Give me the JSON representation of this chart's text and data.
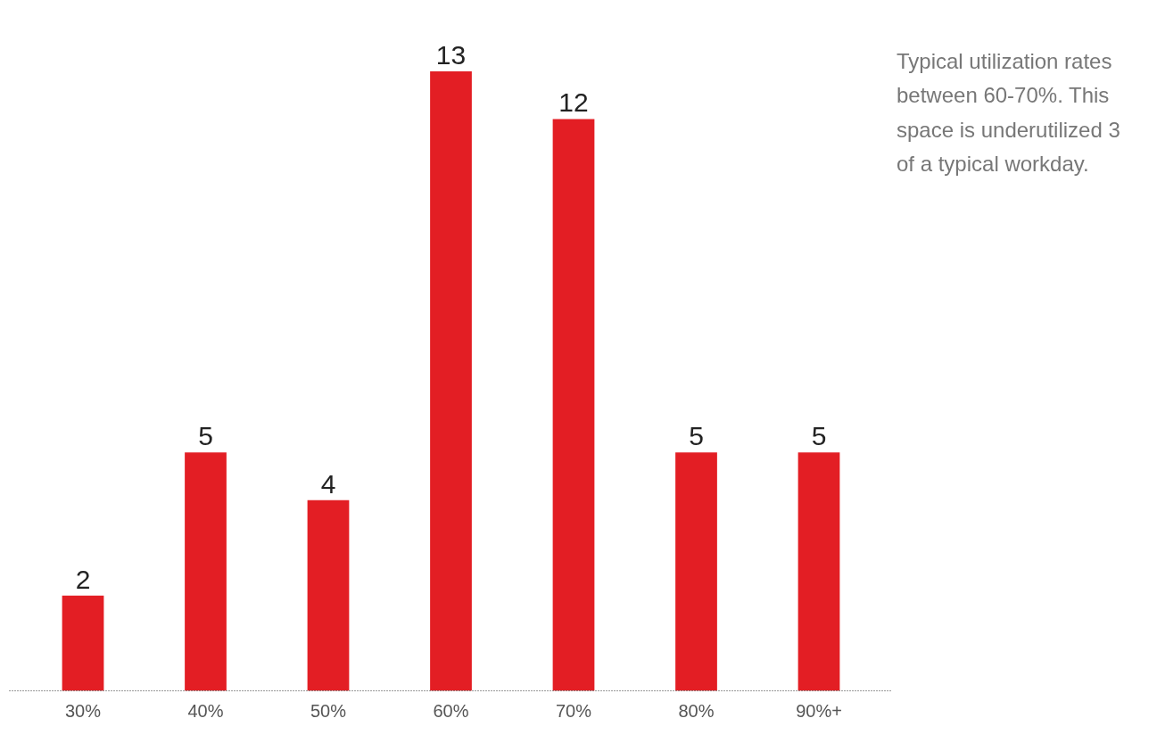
{
  "chart_data": {
    "type": "bar",
    "categories": [
      "30%",
      "40%",
      "50%",
      "60%",
      "70%",
      "80%",
      "90%+"
    ],
    "values": [
      2,
      5,
      4,
      13,
      12,
      5,
      5
    ],
    "color": "#e31e24",
    "data_labels": true,
    "annotations": [
      "Typical utilization rates between 60-70%. This space is underutilized 3 of a typical workday."
    ]
  }
}
